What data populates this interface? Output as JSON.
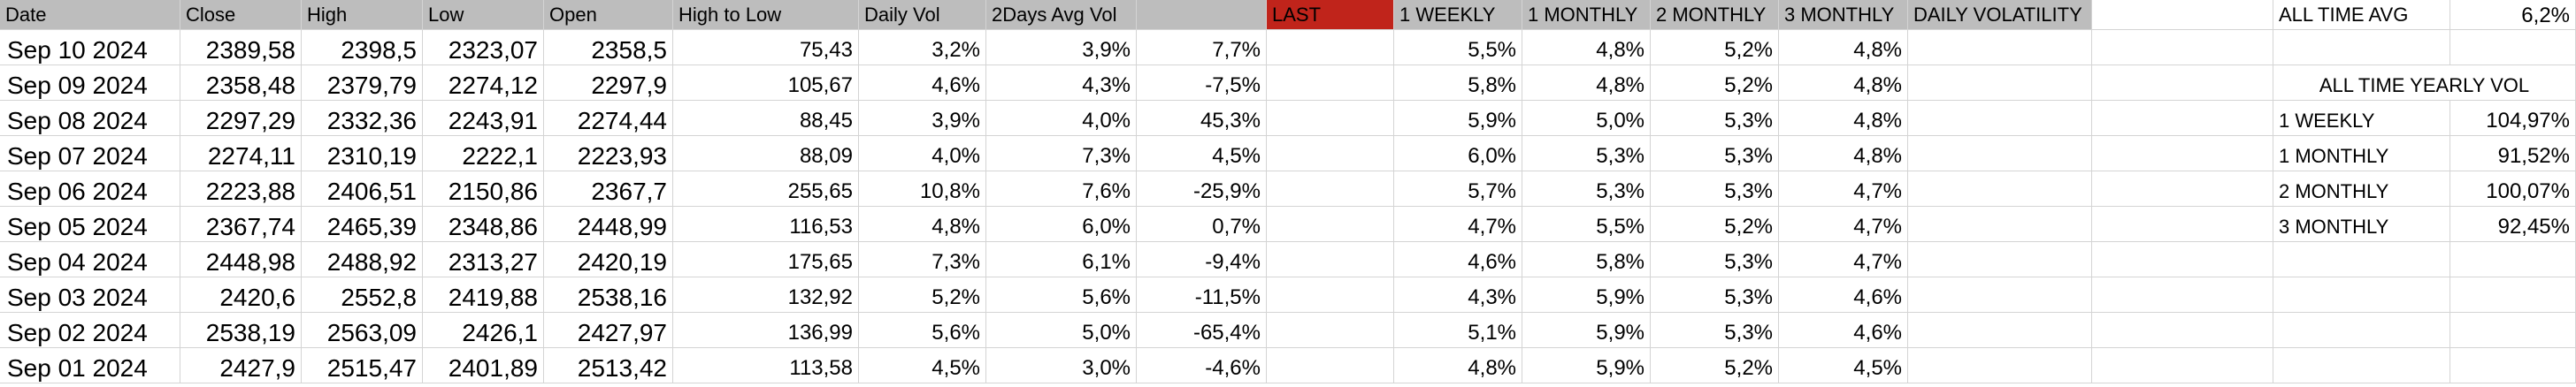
{
  "headers": [
    "Date",
    "Close",
    "High",
    "Low",
    "Open",
    "High to Low",
    "Daily Vol",
    "2Days Avg Vol",
    "",
    "LAST",
    "1 WEEKLY",
    "1 MONTHLY",
    "2 MONTHLY",
    "3 MONTHLY",
    "DAILY VOLATILITY"
  ],
  "last_highlight_color": "#c0241b",
  "rows": [
    [
      "Sep 10 2024",
      "2389,58",
      "2398,5",
      "2323,07",
      "2358,5",
      "75,43",
      "3,2%",
      "3,9%",
      "7,7%",
      "",
      "5,5%",
      "4,8%",
      "5,2%",
      "4,8%",
      ""
    ],
    [
      "Sep 09 2024",
      "2358,48",
      "2379,79",
      "2274,12",
      "2297,9",
      "105,67",
      "4,6%",
      "4,3%",
      "-7,5%",
      "",
      "5,8%",
      "4,8%",
      "5,2%",
      "4,8%",
      ""
    ],
    [
      "Sep 08 2024",
      "2297,29",
      "2332,36",
      "2243,91",
      "2274,44",
      "88,45",
      "3,9%",
      "4,0%",
      "45,3%",
      "",
      "5,9%",
      "5,0%",
      "5,3%",
      "4,8%",
      ""
    ],
    [
      "Sep 07 2024",
      "2274,11",
      "2310,19",
      "2222,1",
      "2223,93",
      "88,09",
      "4,0%",
      "7,3%",
      "4,5%",
      "",
      "6,0%",
      "5,3%",
      "5,3%",
      "4,8%",
      ""
    ],
    [
      "Sep 06 2024",
      "2223,88",
      "2406,51",
      "2150,86",
      "2367,7",
      "255,65",
      "10,8%",
      "7,6%",
      "-25,9%",
      "",
      "5,7%",
      "5,3%",
      "5,3%",
      "4,7%",
      ""
    ],
    [
      "Sep 05 2024",
      "2367,74",
      "2465,39",
      "2348,86",
      "2448,99",
      "116,53",
      "4,8%",
      "6,0%",
      "0,7%",
      "",
      "4,7%",
      "5,5%",
      "5,2%",
      "4,7%",
      ""
    ],
    [
      "Sep 04 2024",
      "2448,98",
      "2488,92",
      "2313,27",
      "2420,19",
      "175,65",
      "7,3%",
      "6,1%",
      "-9,4%",
      "",
      "4,6%",
      "5,8%",
      "5,3%",
      "4,7%",
      ""
    ],
    [
      "Sep 03 2024",
      "2420,6",
      "2552,8",
      "2419,88",
      "2538,16",
      "132,92",
      "5,2%",
      "5,6%",
      "-11,5%",
      "",
      "4,3%",
      "5,9%",
      "5,3%",
      "4,6%",
      ""
    ],
    [
      "Sep 02 2024",
      "2538,19",
      "2563,09",
      "2426,1",
      "2427,97",
      "136,99",
      "5,6%",
      "5,0%",
      "-65,4%",
      "",
      "5,1%",
      "5,9%",
      "5,3%",
      "4,6%",
      ""
    ],
    [
      "Sep 01 2024",
      "2427,9",
      "2515,47",
      "2401,89",
      "2513,42",
      "113,58",
      "4,5%",
      "3,0%",
      "-4,6%",
      "",
      "4,8%",
      "5,9%",
      "5,2%",
      "4,5%",
      ""
    ]
  ],
  "side": {
    "all_time_avg_label": "ALL TIME AVG",
    "all_time_avg_value": "6,2%",
    "yearly_vol_title": "ALL TIME YEARLY VOL",
    "yearly": [
      {
        "label": "1 WEEKLY",
        "value": "104,97%"
      },
      {
        "label": "1 MONTHLY",
        "value": "91,52%"
      },
      {
        "label": "2 MONTHLY",
        "value": "100,07%"
      },
      {
        "label": "3 MONTHLY",
        "value": "92,45%"
      }
    ]
  }
}
